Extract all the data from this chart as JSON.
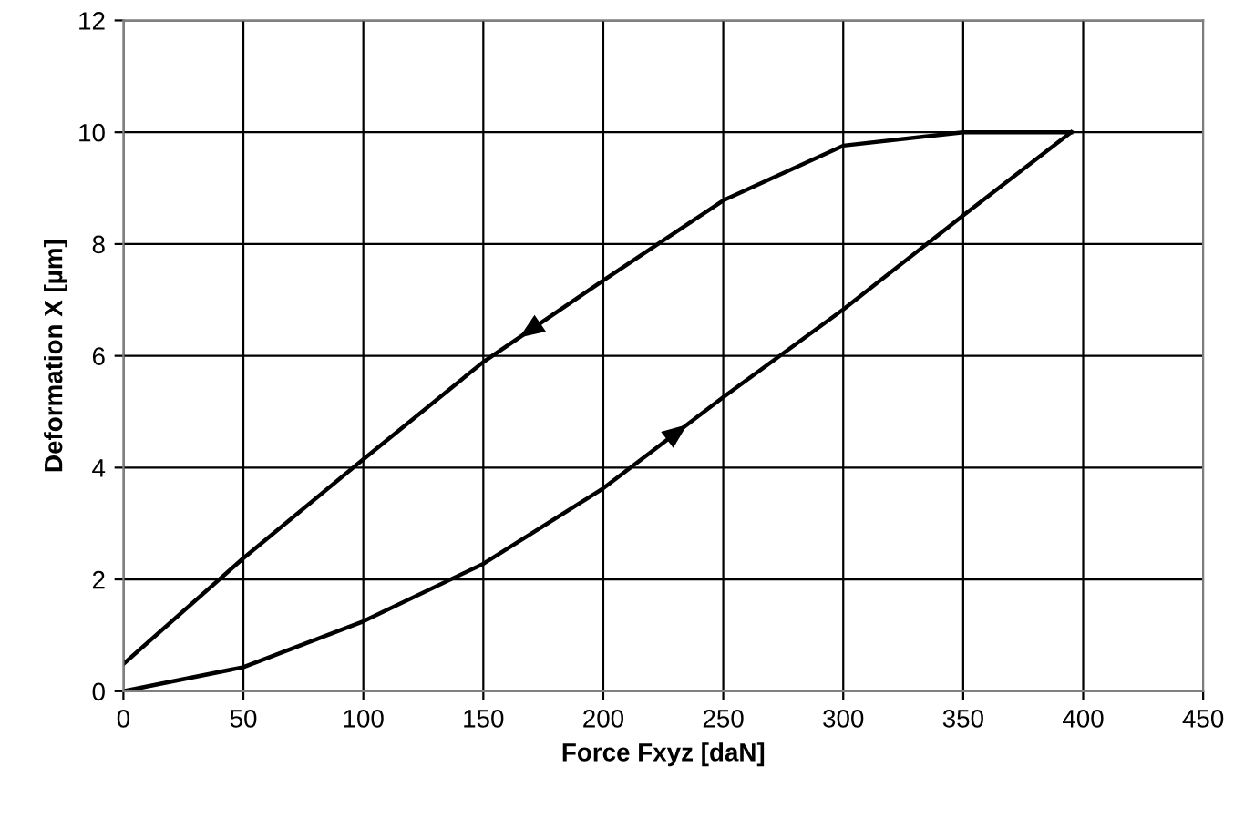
{
  "chart_data": {
    "type": "line",
    "xlabel": "Force Fxyz [daN]",
    "ylabel": "Deformation X [µm]",
    "xlim": [
      0,
      450
    ],
    "ylim": [
      0,
      12
    ],
    "xticks": [
      0,
      50,
      100,
      150,
      200,
      250,
      300,
      350,
      400,
      450
    ],
    "yticks": [
      0,
      2,
      4,
      6,
      8,
      10,
      12
    ],
    "grid": true,
    "marker": "none",
    "line_style": "solid",
    "series": [
      {
        "color": "#000000",
        "x": [
          0,
          50,
          100,
          150,
          200,
          250,
          300,
          350,
          395
        ],
        "values": [
          0,
          0.43,
          1.25,
          2.28,
          3.63,
          5.26,
          6.83,
          8.51,
          10
        ]
      },
      {
        "color": "#000000",
        "x": [
          395,
          350,
          300,
          250,
          200,
          150,
          100,
          50,
          0
        ],
        "values": [
          10,
          10,
          9.76,
          8.78,
          7.35,
          5.89,
          4.15,
          2.38,
          0.49
        ]
      }
    ]
  }
}
